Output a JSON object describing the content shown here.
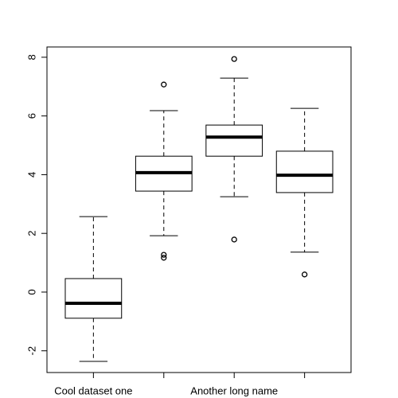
{
  "chart_data": {
    "type": "box",
    "categories": [
      "Cool dataset one",
      null,
      "Another long name",
      null
    ],
    "boxes": [
      {
        "whisker_low": -2.36,
        "q1": -0.89,
        "median": -0.38,
        "q3": 0.46,
        "whisker_high": 2.57,
        "outliers": []
      },
      {
        "whisker_low": 1.92,
        "q1": 3.44,
        "median": 4.07,
        "q3": 4.63,
        "whisker_high": 6.18,
        "outliers": [
          7.07,
          1.27,
          1.17
        ]
      },
      {
        "whisker_low": 3.25,
        "q1": 4.63,
        "median": 5.28,
        "q3": 5.69,
        "whisker_high": 7.29,
        "outliers": [
          7.94,
          1.79
        ]
      },
      {
        "whisker_low": 1.36,
        "q1": 3.39,
        "median": 3.98,
        "q3": 4.8,
        "whisker_high": 6.26,
        "outliers": [
          0.6
        ]
      }
    ],
    "ylim": [
      -2.74,
      8.35
    ],
    "yticks": [
      -2,
      0,
      2,
      4,
      6,
      8
    ],
    "color": "#000000"
  }
}
